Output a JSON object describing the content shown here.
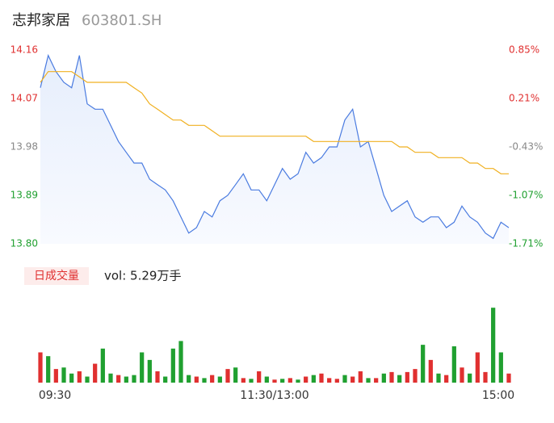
{
  "header": {
    "name": "志邦家居",
    "code": "603801.SH"
  },
  "chart_data": [
    {
      "type": "line",
      "xlim": [
        0,
        60
      ],
      "xticks": [
        {
          "value": 0,
          "label": "09:30"
        },
        {
          "value": 30,
          "label": "11:30/13:00"
        },
        {
          "value": 60,
          "label": "15:00"
        }
      ],
      "ylim": [
        13.8,
        14.16
      ],
      "yticks": [
        {
          "value": 14.16,
          "label": "14.16"
        },
        {
          "value": 14.07,
          "label": "14.07"
        },
        {
          "value": 13.98,
          "label": "13.98"
        },
        {
          "value": 13.89,
          "label": "13.89"
        },
        {
          "value": 13.8,
          "label": "13.80"
        }
      ],
      "y2lim": [
        -1.71,
        0.85
      ],
      "y2ticks": [
        {
          "value": 0.85,
          "label": "0.85%"
        },
        {
          "value": 0.21,
          "label": "0.21%"
        },
        {
          "value": -0.43,
          "label": "-0.43%"
        },
        {
          "value": -1.07,
          "label": "-1.07%"
        },
        {
          "value": -1.71,
          "label": "-1.71%"
        }
      ],
      "tick_colors": [
        "#e03030",
        "#e03030",
        "#888888",
        "#20a030",
        "#20a030"
      ],
      "series": [
        {
          "color": "#4a7be0",
          "values": [
            14.09,
            14.15,
            14.12,
            14.1,
            14.09,
            14.15,
            14.06,
            14.05,
            14.05,
            14.02,
            13.99,
            13.97,
            13.95,
            13.95,
            13.92,
            13.91,
            13.9,
            13.88,
            13.85,
            13.82,
            13.83,
            13.86,
            13.85,
            13.88,
            13.89,
            13.91,
            13.93,
            13.9,
            13.9,
            13.88,
            13.91,
            13.94,
            13.92,
            13.93,
            13.97,
            13.95,
            13.96,
            13.98,
            13.98,
            14.03,
            14.05,
            13.98,
            13.99,
            13.94,
            13.89,
            13.86,
            13.87,
            13.88,
            13.85,
            13.84,
            13.85,
            13.85,
            13.83,
            13.84,
            13.87,
            13.85,
            13.84,
            13.82,
            13.81,
            13.84,
            13.83
          ]
        },
        {
          "color": "#f0b020",
          "values": [
            14.1,
            14.12,
            14.12,
            14.12,
            14.12,
            14.11,
            14.1,
            14.1,
            14.1,
            14.1,
            14.1,
            14.1,
            14.09,
            14.08,
            14.06,
            14.05,
            14.04,
            14.03,
            14.03,
            14.02,
            14.02,
            14.02,
            14.01,
            14.0,
            14.0,
            14.0,
            14.0,
            14.0,
            14.0,
            14.0,
            14.0,
            14.0,
            14.0,
            14.0,
            14.0,
            13.99,
            13.99,
            13.99,
            13.99,
            13.99,
            13.99,
            13.99,
            13.99,
            13.99,
            13.99,
            13.99,
            13.98,
            13.98,
            13.97,
            13.97,
            13.97,
            13.96,
            13.96,
            13.96,
            13.96,
            13.95,
            13.95,
            13.94,
            13.94,
            13.93,
            13.93
          ]
        }
      ]
    },
    {
      "type": "volume",
      "tag": "日成交量",
      "label": "vol: 5.29万手",
      "vlim": [
        0,
        3200
      ],
      "values": [
        1200,
        1050,
        540,
        600,
        360,
        450,
        240,
        750,
        1350,
        360,
        300,
        240,
        300,
        1200,
        900,
        450,
        240,
        1350,
        1650,
        300,
        240,
        180,
        300,
        240,
        540,
        600,
        180,
        150,
        450,
        240,
        120,
        150,
        180,
        120,
        240,
        300,
        360,
        180,
        150,
        300,
        240,
        450,
        180,
        180,
        360,
        420,
        300,
        420,
        540,
        1500,
        900,
        360,
        300,
        1440,
        600,
        360,
        1200,
        420,
        2970,
        1200,
        360
      ],
      "colors": [
        "#e03030",
        "#20a030",
        "#e03030",
        "#20a030",
        "#20a030",
        "#e03030",
        "#20a030",
        "#e03030",
        "#20a030",
        "#20a030",
        "#e03030",
        "#20a030",
        "#20a030",
        "#20a030",
        "#20a030",
        "#e03030",
        "#20a030",
        "#20a030",
        "#20a030",
        "#20a030",
        "#e03030",
        "#20a030",
        "#e03030",
        "#20a030",
        "#e03030",
        "#20a030",
        "#e03030",
        "#20a030",
        "#e03030",
        "#20a030",
        "#e03030",
        "#20a030",
        "#e03030",
        "#20a030",
        "#e03030",
        "#20a030",
        "#e03030",
        "#e03030",
        "#e03030",
        "#20a030",
        "#e03030",
        "#e03030",
        "#20a030",
        "#e03030",
        "#20a030",
        "#e03030",
        "#20a030",
        "#e03030",
        "#e03030",
        "#20a030",
        "#e03030",
        "#20a030",
        "#e03030",
        "#20a030",
        "#e03030",
        "#20a030",
        "#e03030",
        "#e03030",
        "#20a030",
        "#20a030",
        "#e03030"
      ]
    }
  ]
}
